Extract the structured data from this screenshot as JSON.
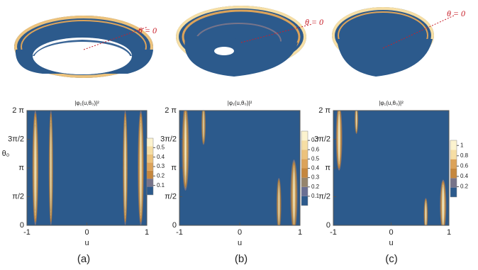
{
  "chart_data": [
    {
      "type": "contour",
      "title": "|φ₁(u,θ₀)|²",
      "xlabel": "u",
      "ylabel": "θ₀",
      "annotation": "θ = 0",
      "caption": "(a)",
      "xlim": [
        -1,
        1
      ],
      "ylim": [
        0,
        6.2832
      ],
      "xticks": [
        -1,
        0,
        1
      ],
      "yticks": [
        0,
        {
          "value": 1.5708,
          "label": "π/2"
        },
        {
          "value": 3.1416,
          "label": "π"
        },
        {
          "value": 4.7124,
          "label": "3π/2"
        },
        {
          "value": 6.2832,
          "label": "2 π"
        }
      ],
      "colorbar_lim": [
        0,
        0.6
      ],
      "colorbar_ticks": [
        0.1,
        0.2,
        0.3,
        0.4,
        0.5
      ],
      "colors": [
        "#2c5a8c",
        "#77748a",
        "#c5873e",
        "#dca35a",
        "#ecc27c",
        "#f6dea4",
        "#fcf3cf"
      ]
    },
    {
      "type": "contour",
      "title": "|φ₁(u,θ₀)|²",
      "xlabel": "u",
      "annotation": "θ = 0",
      "caption": "(b)",
      "xlim": [
        -1,
        1
      ],
      "ylim": [
        0,
        6.2832
      ],
      "xticks": [
        -1,
        0,
        1
      ],
      "yticks": [
        0,
        {
          "value": 1.5708,
          "label": "π/2"
        },
        {
          "value": 3.1416,
          "label": "π"
        },
        {
          "value": 4.7124,
          "label": "3π/2"
        },
        {
          "value": 6.2832,
          "label": "2 π"
        }
      ],
      "colorbar_lim": [
        0,
        0.8
      ],
      "colorbar_ticks": [
        0.1,
        0.2,
        0.3,
        0.4,
        0.5,
        0.6,
        0.7
      ],
      "colors": [
        "#2c5a8c",
        "#6a6f93",
        "#96856c",
        "#c5873e",
        "#dca35a",
        "#ecc27c",
        "#f6dea4",
        "#fcf3cf"
      ]
    },
    {
      "type": "contour",
      "title": "|φ₁(u,θ₀)|²",
      "xlabel": "u",
      "annotation": "θ = 0",
      "caption": "(c)",
      "xlim": [
        -1,
        1
      ],
      "ylim": [
        0,
        6.2832
      ],
      "xticks": [
        -1,
        0,
        1
      ],
      "yticks": [
        0,
        {
          "value": 1.5708,
          "label": "π/2"
        },
        {
          "value": 3.1416,
          "label": "π"
        },
        {
          "value": 4.7124,
          "label": "3π/2"
        },
        {
          "value": 6.2832,
          "label": "2 π"
        }
      ],
      "colorbar_lim": [
        0,
        1.1
      ],
      "colorbar_ticks": [
        0.2,
        0.4,
        0.6,
        0.8,
        1.0
      ],
      "colors": [
        "#2c5a8c",
        "#77748a",
        "#c5873e",
        "#dca35a",
        "#f6dea4",
        "#fcf3cf"
      ]
    }
  ]
}
